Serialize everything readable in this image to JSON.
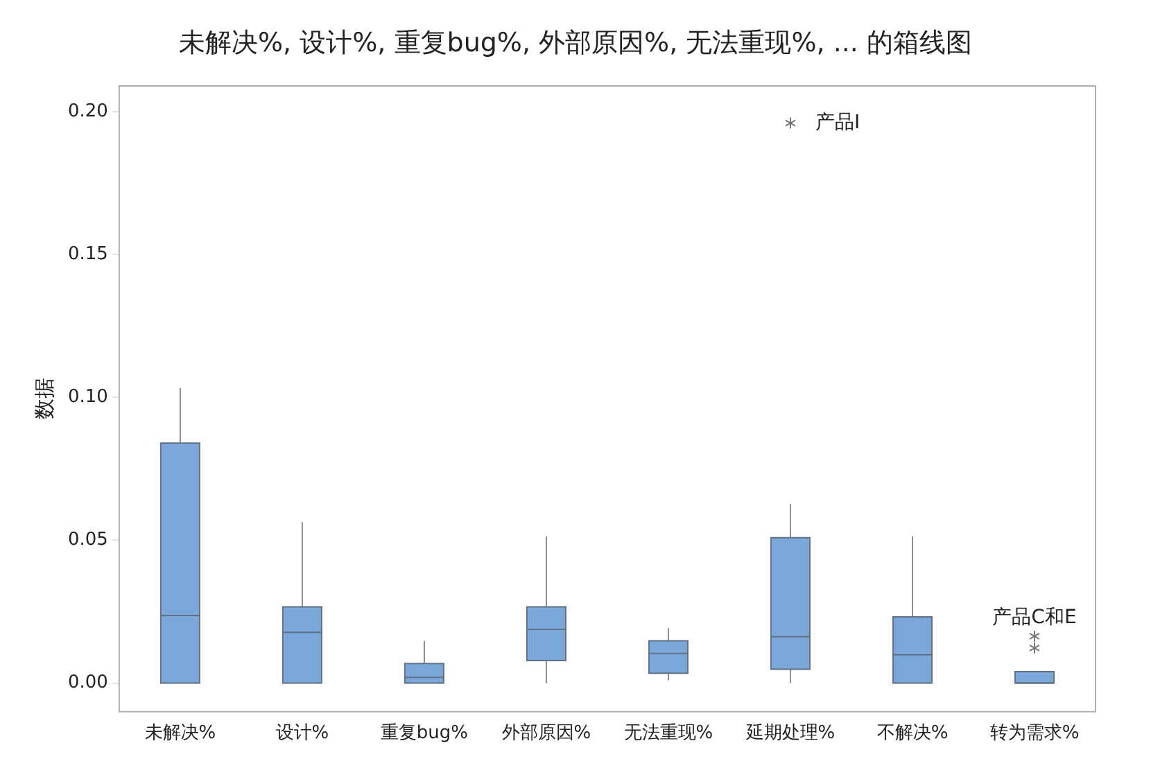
{
  "chart_data": {
    "type": "box",
    "title": "未解决%, 设计%, 重复bug%, 外部原因%, 无法重现%, ... 的箱线图",
    "ylabel": "数据",
    "categories": [
      "未解决%",
      "设计%",
      "重复bug%",
      "外部原因%",
      "无法重现%",
      "延期处理%",
      "不解决%",
      "转为需求%"
    ],
    "color": "#7ba7db",
    "boxes": [
      {
        "low": 0,
        "q1": 0,
        "median": 0.0237,
        "q3": 0.084,
        "high": 0.1032
      },
      {
        "low": 0,
        "q1": 0,
        "median": 0.0178,
        "q3": 0.0267,
        "high": 0.0563
      },
      {
        "low": 0,
        "q1": 0,
        "median": 0.002,
        "q3": 0.0069,
        "high": 0.0148
      },
      {
        "low": 0,
        "q1": 0.0079,
        "median": 0.0188,
        "q3": 0.0267,
        "high": 0.0514
      },
      {
        "low": 0.001,
        "q1": 0.0035,
        "median": 0.0104,
        "q3": 0.0148,
        "high": 0.0193
      },
      {
        "low": 0,
        "q1": 0.0049,
        "median": 0.0163,
        "q3": 0.0509,
        "high": 0.0627,
        "outliers": [
          0.196
        ]
      },
      {
        "low": 0,
        "q1": 0,
        "median": 0.0099,
        "q3": 0.0232,
        "high": 0.0514
      },
      {
        "low": 0,
        "q1": 0,
        "median": 0,
        "q3": 0.004,
        "high": 0.004,
        "outliers": [
          0.0164,
          0.0123
        ]
      }
    ],
    "ylim": [
      -0.01,
      0.209
    ],
    "yticks": [
      {
        "value": 0,
        "label": "0.00"
      },
      {
        "value": 0.05,
        "label": "0.05"
      },
      {
        "value": 0.1,
        "label": "0.10"
      },
      {
        "value": 0.15,
        "label": "0.15"
      },
      {
        "value": 0.2,
        "label": "0.20"
      }
    ],
    "annotations": [
      "产品I",
      "产品C和E"
    ]
  }
}
